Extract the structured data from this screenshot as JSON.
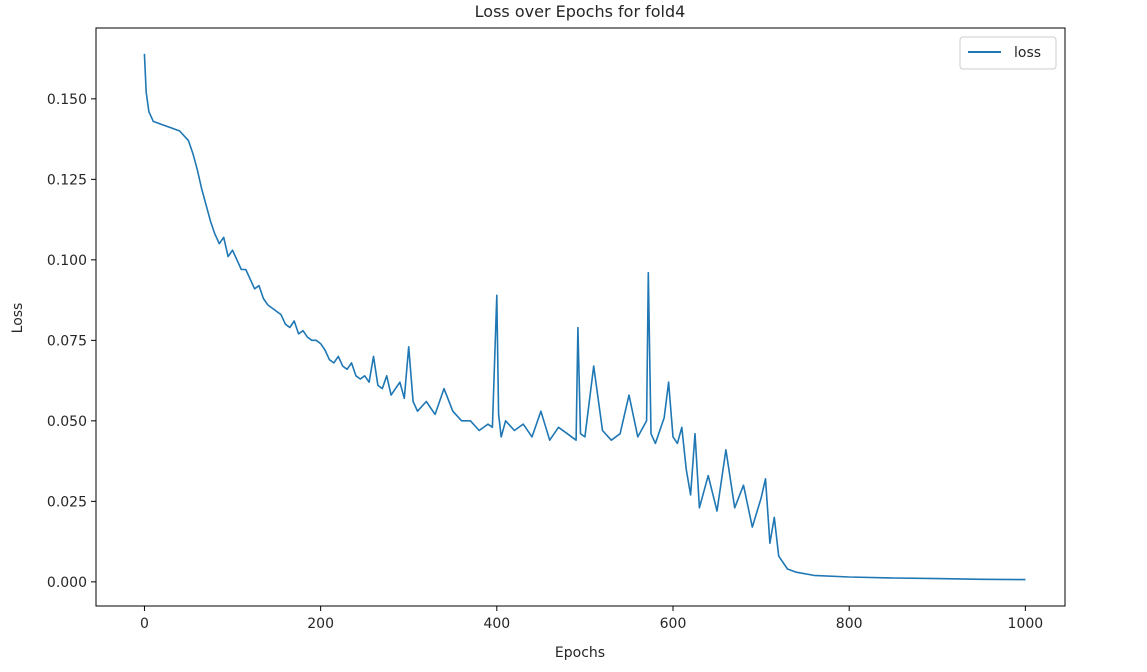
{
  "chart_data": {
    "type": "line",
    "title": "Loss over Epochs for fold4",
    "xlabel": "Epochs",
    "ylabel": "Loss",
    "xlim": [
      -55,
      1045
    ],
    "ylim": [
      -0.0075,
      0.172
    ],
    "xticks": [
      0,
      200,
      400,
      600,
      800,
      1000
    ],
    "yticks": [
      0.0,
      0.025,
      0.05,
      0.075,
      0.1,
      0.125,
      0.15
    ],
    "ytick_labels": [
      "0.000",
      "0.025",
      "0.050",
      "0.075",
      "0.100",
      "0.125",
      "0.150"
    ],
    "grid": false,
    "legend": "top-right",
    "colors": {
      "series": "#1f77b4",
      "axes": "#000000"
    },
    "series": [
      {
        "name": "loss",
        "x": [
          0,
          2,
          5,
          10,
          20,
          30,
          40,
          50,
          55,
          60,
          65,
          70,
          75,
          80,
          85,
          90,
          95,
          100,
          105,
          110,
          115,
          120,
          125,
          130,
          135,
          140,
          145,
          150,
          155,
          160,
          165,
          170,
          175,
          180,
          185,
          190,
          195,
          200,
          205,
          210,
          215,
          220,
          225,
          230,
          235,
          240,
          245,
          250,
          255,
          260,
          265,
          270,
          275,
          280,
          285,
          290,
          295,
          300,
          305,
          310,
          320,
          330,
          340,
          350,
          360,
          370,
          380,
          390,
          395,
          400,
          402,
          405,
          410,
          420,
          430,
          440,
          450,
          460,
          470,
          480,
          490,
          492,
          495,
          500,
          510,
          520,
          530,
          540,
          550,
          560,
          570,
          572,
          575,
          580,
          590,
          595,
          600,
          605,
          610,
          615,
          620,
          625,
          630,
          640,
          650,
          660,
          670,
          680,
          690,
          700,
          705,
          710,
          715,
          720,
          730,
          740,
          760,
          800,
          850,
          900,
          950,
          1000
        ],
        "y": [
          0.164,
          0.152,
          0.146,
          0.143,
          0.142,
          0.141,
          0.14,
          0.137,
          0.133,
          0.128,
          0.122,
          0.117,
          0.112,
          0.108,
          0.105,
          0.107,
          0.101,
          0.103,
          0.1,
          0.097,
          0.097,
          0.094,
          0.091,
          0.092,
          0.088,
          0.086,
          0.085,
          0.084,
          0.083,
          0.08,
          0.079,
          0.081,
          0.077,
          0.078,
          0.076,
          0.075,
          0.075,
          0.074,
          0.072,
          0.069,
          0.068,
          0.07,
          0.067,
          0.066,
          0.068,
          0.064,
          0.063,
          0.064,
          0.062,
          0.07,
          0.061,
          0.06,
          0.064,
          0.058,
          0.06,
          0.062,
          0.057,
          0.073,
          0.056,
          0.053,
          0.056,
          0.052,
          0.06,
          0.053,
          0.05,
          0.05,
          0.047,
          0.049,
          0.048,
          0.089,
          0.052,
          0.045,
          0.05,
          0.047,
          0.049,
          0.045,
          0.053,
          0.044,
          0.048,
          0.046,
          0.044,
          0.079,
          0.046,
          0.045,
          0.067,
          0.047,
          0.044,
          0.046,
          0.058,
          0.045,
          0.05,
          0.096,
          0.046,
          0.043,
          0.051,
          0.062,
          0.045,
          0.043,
          0.048,
          0.035,
          0.027,
          0.046,
          0.023,
          0.033,
          0.022,
          0.041,
          0.023,
          0.03,
          0.017,
          0.026,
          0.032,
          0.012,
          0.02,
          0.008,
          0.004,
          0.003,
          0.002,
          0.0015,
          0.0012,
          0.001,
          0.0008,
          0.0007
        ]
      }
    ]
  }
}
